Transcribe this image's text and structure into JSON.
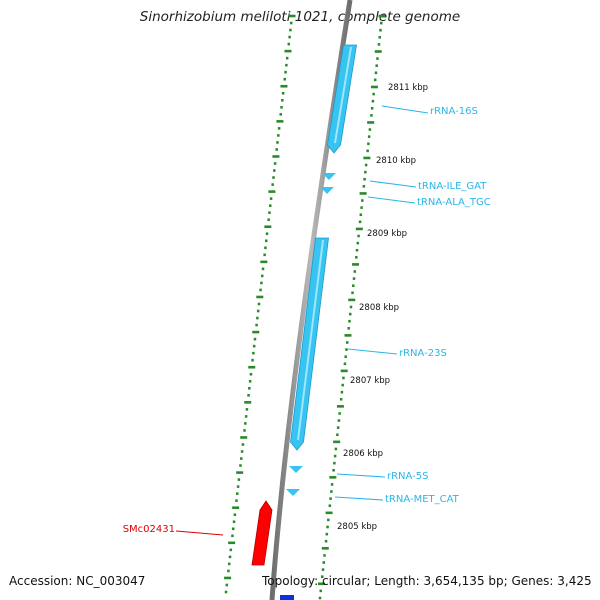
{
  "title": "Sinorhizobium meliloti 1021, complete genome",
  "footer": {
    "accession": "Accession: NC_003047",
    "topology": "Topology: circular; Length: 3,654,135 bp; Genes: 3,425"
  },
  "colors": {
    "backbone": "#8a8a8a",
    "rna": "#38c4f0",
    "cds": "#ff0000",
    "ticks": "#2a8a2a",
    "label_rna": "#29b6e8",
    "label_cds": "#e00000"
  },
  "kbp_marks": [
    {
      "label": "2811 kbp"
    },
    {
      "label": "2810 kbp"
    },
    {
      "label": "2809 kbp"
    },
    {
      "label": "2808 kbp"
    },
    {
      "label": "2807 kbp"
    },
    {
      "label": "2806 kbp"
    },
    {
      "label": "2805 kbp"
    }
  ],
  "features": [
    {
      "label": "rRNA-16S",
      "type": "rRNA"
    },
    {
      "label": "tRNA-ILE_GAT",
      "type": "tRNA"
    },
    {
      "label": "tRNA-ALA_TGC",
      "type": "tRNA"
    },
    {
      "label": "rRNA-23S",
      "type": "rRNA"
    },
    {
      "label": "rRNA-5S",
      "type": "rRNA"
    },
    {
      "label": "tRNA-MET_CAT",
      "type": "tRNA"
    },
    {
      "label": "SMc02431",
      "type": "CDS"
    }
  ]
}
